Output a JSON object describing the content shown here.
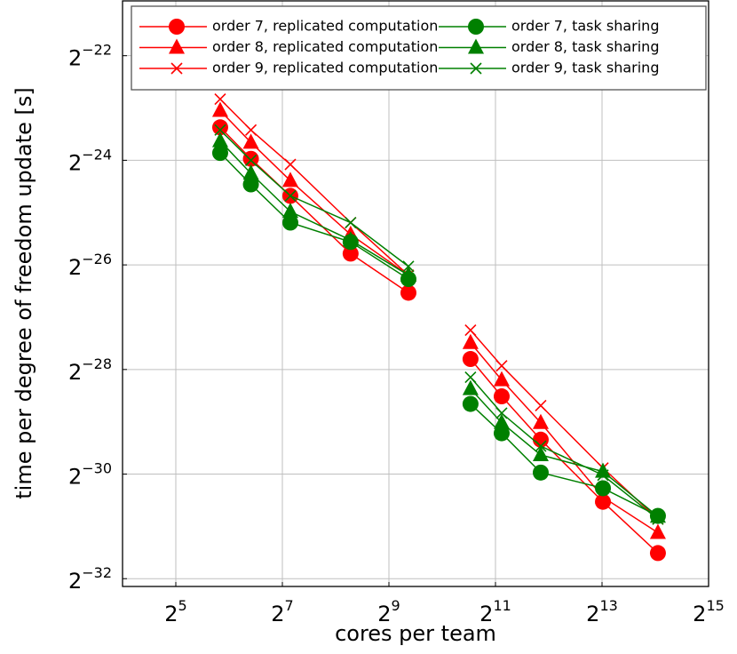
{
  "chart_data": {
    "type": "line",
    "xlabel": "cores per team",
    "ylabel": "time per degree of freedom update [s]",
    "log_x": 2,
    "log_y": 2,
    "grid": true,
    "legend": "top",
    "xlim": [
      16,
      32768
    ],
    "ylim": [
      2.1e-10,
      4.93e-07
    ],
    "xticks": [
      {
        "value": 32,
        "label": "25"
      },
      {
        "value": 128,
        "label": "27"
      },
      {
        "value": 512,
        "label": "29"
      },
      {
        "value": 2048,
        "label": "211"
      },
      {
        "value": 8192,
        "label": "213"
      },
      {
        "value": 32768,
        "label": "215"
      }
    ],
    "yticks": [
      {
        "value": 2.3283064365386963e-10,
        "label": "2−32"
      },
      {
        "value": 9.313225746154785e-10,
        "label": "2−30"
      },
      {
        "value": 3.725290298461914e-09,
        "label": "2−28"
      },
      {
        "value": 1.4901161193847656e-08,
        "label": "2−26"
      },
      {
        "value": 5.960464477539063e-08,
        "label": "2−24"
      },
      {
        "value": 2.384185791015625e-07,
        "label": "2−22"
      }
    ],
    "x": [
      57,
      85,
      142,
      311,
      660,
      null,
      1480,
      2220,
      3690,
      8290,
      16950
    ],
    "series": [
      {
        "name": "order 7, replicated computation",
        "color": "#ff0000",
        "marker": "circle",
        "values": [
          9.23e-08,
          6.08e-08,
          3.72e-08,
          1.73e-08,
          1.03e-08,
          null,
          4.28e-09,
          2.61e-09,
          1.47e-09,
          6.45e-10,
          3.27e-10
        ]
      },
      {
        "name": "order 8, replicated computation",
        "color": "#ff0000",
        "marker": "triangle",
        "values": [
          1.152e-07,
          7.55e-08,
          4.55e-08,
          2.23e-08,
          1.3e-08,
          null,
          5.31e-09,
          3.24e-09,
          1.84e-09,
          6.86e-10,
          4.28e-10
        ]
      },
      {
        "name": "order 9, replicated computation",
        "color": "#ff0000",
        "marker": "x",
        "values": [
          1.34e-07,
          8.9e-08,
          5.64e-08,
          2.61e-08,
          1.3e-08,
          null,
          6.27e-09,
          3.91e-09,
          2.31e-09,
          1.01e-09,
          5.13e-10
        ]
      },
      {
        "name": "order 7, task sharing",
        "color": "#008000",
        "marker": "circle",
        "values": [
          6.57e-08,
          4.33e-08,
          2.61e-08,
          2.02e-08,
          1.235e-08,
          null,
          2.36e-09,
          1.6e-09,
          9.5e-10,
          7.72e-10,
          5.35e-10
        ]
      },
      {
        "name": "order 8, task sharing",
        "color": "#008000",
        "marker": "triangle",
        "values": [
          7.7e-08,
          5.01e-08,
          3.02e-08,
          2.07e-08,
          1.3e-08,
          null,
          2.88e-09,
          1.84e-09,
          1.2e-09,
          9.63e-10,
          5.31e-10
        ]
      },
      {
        "name": "order 9, task sharing",
        "color": "#008000",
        "marker": "x",
        "values": [
          8.9e-08,
          5.96e-08,
          3.72e-08,
          2.61e-08,
          1.46e-08,
          null,
          3.36e-09,
          2.09e-09,
          1.35e-09,
          9.18e-10,
          5.13e-10
        ]
      }
    ]
  }
}
